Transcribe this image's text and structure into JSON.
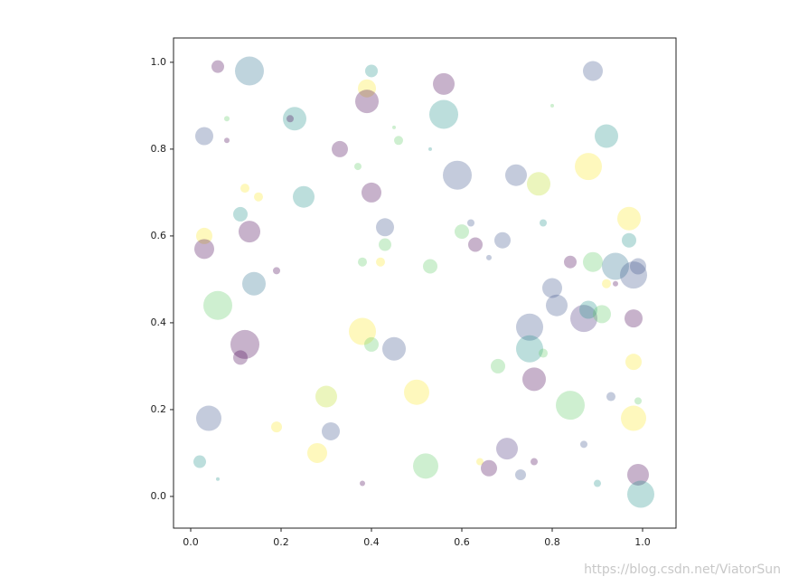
{
  "chart_data": {
    "type": "scatter",
    "x": [
      0.06,
      0.13,
      0.4,
      0.56,
      0.89,
      0.39,
      0.39,
      0.56,
      0.8,
      0.03,
      0.08,
      0.23,
      0.22,
      0.08,
      0.33,
      0.46,
      0.45,
      0.53,
      0.59,
      0.72,
      0.77,
      0.88,
      0.92,
      0.37,
      0.12,
      0.15,
      0.25,
      0.4,
      0.11,
      0.13,
      0.03,
      0.03,
      0.43,
      0.43,
      0.6,
      0.62,
      0.63,
      0.66,
      0.69,
      0.78,
      0.97,
      0.97,
      0.19,
      0.14,
      0.38,
      0.42,
      0.53,
      0.84,
      0.89,
      0.94,
      0.99,
      0.98,
      0.92,
      0.94,
      0.06,
      0.8,
      0.81,
      0.75,
      0.87,
      0.88,
      0.91,
      0.98,
      0.12,
      0.11,
      0.38,
      0.4,
      0.45,
      0.75,
      0.78,
      0.76,
      0.68,
      0.98,
      0.3,
      0.5,
      0.84,
      0.93,
      0.99,
      0.04,
      0.19,
      0.31,
      0.98,
      0.28,
      0.7,
      0.87,
      0.02,
      0.52,
      0.64,
      0.66,
      0.73,
      0.76,
      0.99,
      0.9,
      0.996,
      0.06,
      0.38
    ],
    "y": [
      0.99,
      0.98,
      0.98,
      0.95,
      0.98,
      0.94,
      0.91,
      0.88,
      0.9,
      0.83,
      0.87,
      0.87,
      0.87,
      0.82,
      0.8,
      0.82,
      0.85,
      0.8,
      0.74,
      0.74,
      0.72,
      0.76,
      0.83,
      0.76,
      0.71,
      0.69,
      0.69,
      0.7,
      0.65,
      0.61,
      0.6,
      0.57,
      0.62,
      0.58,
      0.61,
      0.63,
      0.58,
      0.55,
      0.59,
      0.63,
      0.64,
      0.59,
      0.52,
      0.49,
      0.54,
      0.54,
      0.53,
      0.54,
      0.54,
      0.53,
      0.53,
      0.51,
      0.49,
      0.49,
      0.44,
      0.48,
      0.44,
      0.39,
      0.41,
      0.43,
      0.42,
      0.41,
      0.35,
      0.32,
      0.38,
      0.35,
      0.34,
      0.34,
      0.33,
      0.27,
      0.3,
      0.31,
      0.23,
      0.24,
      0.21,
      0.23,
      0.22,
      0.18,
      0.16,
      0.15,
      0.18,
      0.1,
      0.11,
      0.12,
      0.08,
      0.07,
      0.08,
      0.065,
      0.05,
      0.08,
      0.05,
      0.03,
      0.005,
      0.04,
      0.03
    ],
    "sizes": [
      196,
      1024,
      196,
      576,
      484,
      400,
      676,
      1024,
      16,
      400,
      36,
      676,
      64,
      36,
      324,
      100,
      16,
      16,
      1024,
      576,
      676,
      900,
      676,
      64,
      100,
      100,
      576,
      484,
      256,
      576,
      324,
      484,
      400,
      196,
      256,
      64,
      256,
      36,
      324,
      64,
      676,
      256,
      64,
      676,
      100,
      100,
      256,
      196,
      484,
      900,
      324,
      900,
      100,
      36,
      1024,
      484,
      576,
      900,
      900,
      400,
      400,
      400,
      1024,
      256,
      900,
      256,
      676,
      900,
      100,
      676,
      256,
      324,
      576,
      784,
      1024,
      100,
      64,
      784,
      144,
      400,
      784,
      484,
      576,
      64,
      196,
      784,
      64,
      324,
      144,
      64,
      576,
      64,
      900,
      16,
      36
    ],
    "colors": [
      "#440154",
      "#2c728e",
      "#21918c",
      "#440154",
      "#3b528b",
      "#fde725",
      "#440154",
      "#21918c",
      "#5ec962",
      "#3b528b",
      "#5ec962",
      "#21918c",
      "#440154",
      "#440154",
      "#440154",
      "#5ec962",
      "#5ec962",
      "#21918c",
      "#3b528b",
      "#3b528b",
      "#bddf26",
      "#fde725",
      "#21918c",
      "#5ec962",
      "#fde725",
      "#fde725",
      "#21918c",
      "#440154",
      "#21918c",
      "#440154",
      "#fde725",
      "#440154",
      "#3b528b",
      "#5ec962",
      "#5ec962",
      "#3b528b",
      "#440154",
      "#3b528b",
      "#3b528b",
      "#21918c",
      "#fde725",
      "#21918c",
      "#440154",
      "#2c728e",
      "#5ec962",
      "#fde725",
      "#5ec962",
      "#440154",
      "#5ec962",
      "#2c728e",
      "#3b528b",
      "#3b528b",
      "#fde725",
      "#440154",
      "#5ec962",
      "#3b528b",
      "#3b528b",
      "#3b528b",
      "#472d7b",
      "#21918c",
      "#5ec962",
      "#440154",
      "#440154",
      "#440154",
      "#fde725",
      "#5ec962",
      "#3b528b",
      "#21918c",
      "#5ec962",
      "#440154",
      "#5ec962",
      "#fde725",
      "#bddf26",
      "#fde725",
      "#5ec962",
      "#3b528b",
      "#5ec962",
      "#3b528b",
      "#fde725",
      "#3b528b",
      "#fde725",
      "#fde725",
      "#472d7b",
      "#3b528b",
      "#21918c",
      "#5ec962",
      "#fde725",
      "#440154",
      "#3b528b",
      "#440154",
      "#440154",
      "#21918c",
      "#21918c",
      "#21918c",
      "#440154"
    ],
    "alpha": 0.3,
    "xlim": [
      -0.038,
      1.074
    ],
    "ylim": [
      -0.073,
      1.056
    ],
    "xticks": [
      {
        "value": 0,
        "label": "0.0"
      },
      {
        "value": 0.2,
        "label": "0.2"
      },
      {
        "value": 0.4,
        "label": "0.4"
      },
      {
        "value": 0.6,
        "label": "0.6"
      },
      {
        "value": 0.8,
        "label": "0.8"
      },
      {
        "value": 1,
        "label": "1.0"
      }
    ],
    "yticks": [
      {
        "value": 0,
        "label": "0.0"
      },
      {
        "value": 0.2,
        "label": "0.2"
      },
      {
        "value": 0.4,
        "label": "0.4"
      },
      {
        "value": 0.6,
        "label": "0.6"
      },
      {
        "value": 0.8,
        "label": "0.8"
      },
      {
        "value": 1,
        "label": "1.0"
      }
    ],
    "watermark": "https://blog.csdn.net/ViatorSun"
  }
}
